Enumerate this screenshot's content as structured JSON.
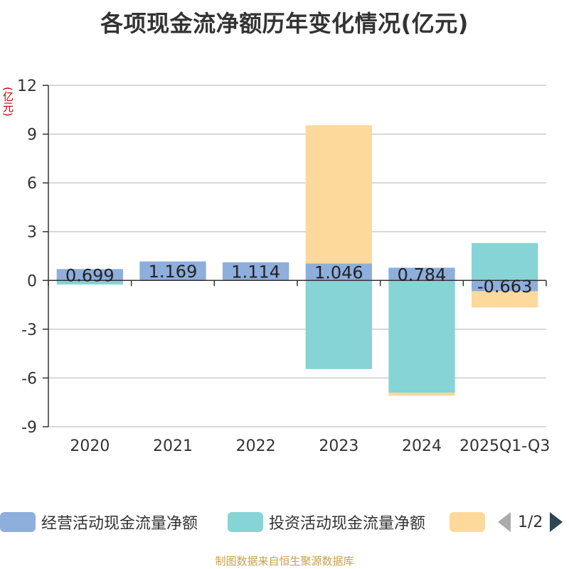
{
  "page": {
    "title": "各项现金流净额历年变化情况(亿元)",
    "unit": "(亿元)",
    "source": "制图数据来自恒生聚源数据库"
  },
  "legend": {
    "items": [
      {
        "label": "经营活动现金流量净额",
        "color": "#8eaedc"
      },
      {
        "label": "投资活动现金流量净额",
        "color": "#86d4d6"
      },
      {
        "label": "",
        "color": "#fdd99b"
      }
    ],
    "page_indicator": "1/2"
  },
  "chart_data": {
    "type": "bar",
    "stacked": true,
    "title": "各项现金流净额历年变化情况(亿元)",
    "ylabel": "(亿元)",
    "ylim": [
      -9,
      12
    ],
    "yticks": [
      12,
      9,
      6,
      3,
      0,
      -3,
      -6,
      -9
    ],
    "ytick_labels": [
      "12",
      "9",
      "6",
      "3",
      "0",
      "-3",
      "-6",
      "-9"
    ],
    "categories": [
      "2020",
      "2021",
      "2022",
      "2023",
      "2024",
      "2025Q1-Q3"
    ],
    "series": [
      {
        "name": "经营活动现金流量净额",
        "color": "#8eaedc",
        "values": [
          0.699,
          1.169,
          1.114,
          1.046,
          0.784,
          -0.663
        ],
        "labels": [
          "0.699",
          "1.169",
          "1.114",
          "1.046",
          "0.784",
          "-0.663"
        ]
      },
      {
        "name": "投资活动现金流量净额",
        "color": "#86d4d6",
        "values": [
          -0.25,
          0.0,
          0.0,
          -5.45,
          -6.9,
          2.3
        ]
      },
      {
        "name": "",
        "color": "#fdd99b",
        "values": [
          0.0,
          0.0,
          0.0,
          8.5,
          -0.2,
          -1.0
        ]
      }
    ]
  }
}
